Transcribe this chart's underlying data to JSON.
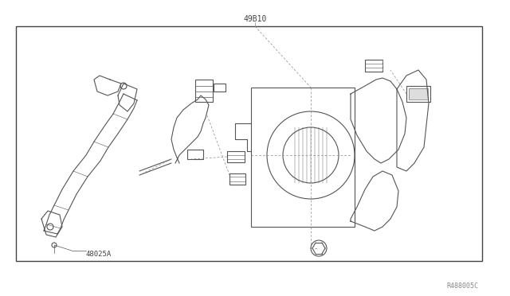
{
  "background_color": "#ffffff",
  "border_color": "#444444",
  "line_color": "#555555",
  "text_color": "#444444",
  "title_label": "49B10",
  "part_label_1": "48025A",
  "part_label_2": "R488005C",
  "fig_width": 6.4,
  "fig_height": 3.72,
  "dpi": 100
}
